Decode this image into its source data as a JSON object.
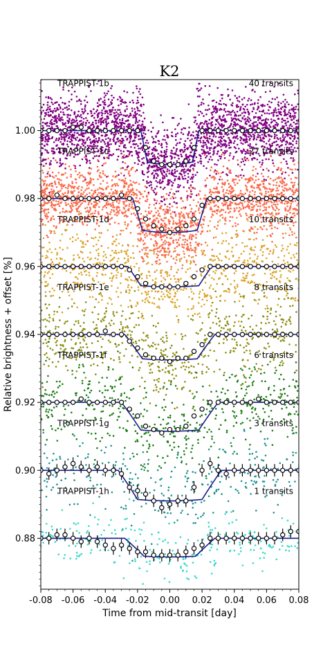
{
  "chart_data": {
    "type": "scatter",
    "title": "K2",
    "xlabel": "Time from mid-transit [day]",
    "ylabel": "Relative brightness + offset [%]",
    "xlim": [
      -0.08,
      0.08
    ],
    "ylim": [
      0.865,
      1.015
    ],
    "xticks": [
      "-0.08",
      "-0.06",
      "-0.04",
      "-0.02",
      "0.00",
      "0.02",
      "0.04",
      "0.06",
      "0.08"
    ],
    "xtick_values": [
      -0.08,
      -0.06,
      -0.04,
      -0.02,
      0.0,
      0.02,
      0.04,
      0.06,
      0.08
    ],
    "yticks": [
      "0.88",
      "0.90",
      "0.92",
      "0.94",
      "0.96",
      "0.98",
      "1.00"
    ],
    "ytick_values": [
      0.88,
      0.9,
      0.92,
      0.94,
      0.96,
      0.98,
      1.0
    ],
    "model_color": "#1a1a8c",
    "series": [
      {
        "name": "TRAPPIST-1b",
        "transits_label": "40 transits",
        "color": "#800080",
        "baseline": 1.0,
        "depth": 0.01,
        "half_duration": 0.018,
        "ingress": 0.004,
        "scatter": 0.0055,
        "n_points": 2600,
        "binned_error": false,
        "binned_x": [
          -0.08,
          -0.075,
          -0.07,
          -0.065,
          -0.06,
          -0.055,
          -0.05,
          -0.045,
          -0.04,
          -0.035,
          -0.03,
          -0.025,
          -0.02,
          -0.015,
          -0.01,
          -0.005,
          0.0,
          0.005,
          0.01,
          0.015,
          0.02,
          0.025,
          0.03,
          0.035,
          0.04,
          0.045,
          0.05,
          0.055,
          0.06,
          0.065,
          0.07,
          0.075,
          0.08
        ],
        "binned_y": [
          1.0,
          1.0,
          1.0,
          1.0,
          1.001,
          1.001,
          1.0,
          1.0,
          1.0,
          1.0,
          1.0,
          1.0,
          1.0,
          0.995,
          0.991,
          0.99,
          0.99,
          0.99,
          0.991,
          0.995,
          1.0,
          1.0,
          1.0,
          1.0,
          1.0,
          1.0,
          1.0,
          1.0,
          1.0,
          1.0,
          1.0,
          1.0,
          1.0
        ]
      },
      {
        "name": "TRAPPIST-1c",
        "transits_label": "27 transits",
        "color": "#fa6a4a",
        "baseline": 0.98,
        "depth": 0.01,
        "half_duration": 0.023,
        "ingress": 0.006,
        "scatter": 0.005,
        "n_points": 1900,
        "binned_error": false,
        "binned_x": [
          -0.08,
          -0.075,
          -0.07,
          -0.065,
          -0.06,
          -0.055,
          -0.05,
          -0.045,
          -0.04,
          -0.035,
          -0.03,
          -0.025,
          -0.02,
          -0.015,
          -0.01,
          -0.005,
          0.0,
          0.005,
          0.01,
          0.015,
          0.02,
          0.025,
          0.03,
          0.035,
          0.04,
          0.045,
          0.05,
          0.055,
          0.06,
          0.065,
          0.07,
          0.075,
          0.08
        ],
        "binned_y": [
          0.98,
          0.98,
          0.981,
          0.98,
          0.98,
          0.98,
          0.98,
          0.98,
          0.98,
          0.98,
          0.981,
          0.98,
          0.977,
          0.974,
          0.972,
          0.971,
          0.97,
          0.971,
          0.972,
          0.974,
          0.978,
          0.98,
          0.98,
          0.98,
          0.98,
          0.98,
          0.98,
          0.98,
          0.98,
          0.98,
          0.98,
          0.98,
          0.98
        ]
      },
      {
        "name": "TRAPPIST-1d",
        "transits_label": "10 transits",
        "color": "#dba52c",
        "baseline": 0.96,
        "depth": 0.006,
        "half_duration": 0.026,
        "ingress": 0.008,
        "scatter": 0.0055,
        "n_points": 800,
        "binned_error": false,
        "binned_x": [
          -0.08,
          -0.075,
          -0.07,
          -0.065,
          -0.06,
          -0.055,
          -0.05,
          -0.045,
          -0.04,
          -0.035,
          -0.03,
          -0.025,
          -0.02,
          -0.015,
          -0.01,
          -0.005,
          0.0,
          0.005,
          0.01,
          0.015,
          0.02,
          0.025,
          0.03,
          0.035,
          0.04,
          0.045,
          0.05,
          0.055,
          0.06,
          0.065,
          0.07,
          0.075,
          0.08
        ],
        "binned_y": [
          0.96,
          0.96,
          0.96,
          0.96,
          0.96,
          0.96,
          0.96,
          0.96,
          0.96,
          0.96,
          0.96,
          0.959,
          0.957,
          0.955,
          0.954,
          0.954,
          0.954,
          0.954,
          0.955,
          0.957,
          0.959,
          0.96,
          0.96,
          0.96,
          0.96,
          0.96,
          0.96,
          0.96,
          0.96,
          0.96,
          0.96,
          0.96,
          0.96
        ]
      },
      {
        "name": "TRAPPIST-1e",
        "transits_label": "8 transits",
        "color": "#8c8c10",
        "baseline": 0.94,
        "depth": 0.0075,
        "half_duration": 0.028,
        "ingress": 0.011,
        "scatter": 0.006,
        "n_points": 650,
        "binned_error": false,
        "binned_x": [
          -0.08,
          -0.075,
          -0.07,
          -0.065,
          -0.06,
          -0.055,
          -0.05,
          -0.045,
          -0.04,
          -0.035,
          -0.03,
          -0.025,
          -0.02,
          -0.015,
          -0.01,
          -0.005,
          0.0,
          0.005,
          0.01,
          0.015,
          0.02,
          0.025,
          0.03,
          0.035,
          0.04,
          0.045,
          0.05,
          0.055,
          0.06,
          0.065,
          0.07,
          0.075,
          0.08
        ],
        "binned_y": [
          0.94,
          0.94,
          0.94,
          0.94,
          0.94,
          0.94,
          0.94,
          0.94,
          0.941,
          0.94,
          0.94,
          0.938,
          0.936,
          0.934,
          0.933,
          0.933,
          0.932,
          0.933,
          0.933,
          0.935,
          0.937,
          0.94,
          0.94,
          0.94,
          0.94,
          0.94,
          0.94,
          0.94,
          0.94,
          0.94,
          0.94,
          0.94,
          0.94
        ]
      },
      {
        "name": "TRAPPIST-1f",
        "transits_label": "6 transits",
        "color": "#1a7d12",
        "baseline": 0.92,
        "depth": 0.0085,
        "half_duration": 0.03,
        "ingress": 0.012,
        "scatter": 0.006,
        "n_points": 520,
        "binned_error": false,
        "binned_x": [
          -0.08,
          -0.075,
          -0.07,
          -0.065,
          -0.06,
          -0.055,
          -0.05,
          -0.045,
          -0.04,
          -0.035,
          -0.03,
          -0.025,
          -0.02,
          -0.015,
          -0.01,
          -0.005,
          0.0,
          0.005,
          0.01,
          0.015,
          0.02,
          0.025,
          0.03,
          0.035,
          0.04,
          0.045,
          0.05,
          0.055,
          0.06,
          0.065,
          0.07,
          0.075,
          0.08
        ],
        "binned_y": [
          0.92,
          0.92,
          0.92,
          0.92,
          0.92,
          0.921,
          0.92,
          0.92,
          0.92,
          0.92,
          0.92,
          0.918,
          0.916,
          0.913,
          0.912,
          0.911,
          0.912,
          0.912,
          0.913,
          0.916,
          0.918,
          0.92,
          0.92,
          0.92,
          0.92,
          0.92,
          0.92,
          0.921,
          0.92,
          0.92,
          0.92,
          0.92,
          0.92
        ]
      },
      {
        "name": "TRAPPIST-1g",
        "transits_label": "3 transits",
        "color": "#1e9090",
        "baseline": 0.9,
        "depth": 0.009,
        "half_duration": 0.032,
        "ingress": 0.012,
        "scatter": 0.006,
        "n_points": 300,
        "binned_error": true,
        "binned_x": [
          -0.08,
          -0.075,
          -0.07,
          -0.065,
          -0.06,
          -0.055,
          -0.05,
          -0.045,
          -0.04,
          -0.035,
          -0.03,
          -0.025,
          -0.02,
          -0.015,
          -0.01,
          -0.005,
          0.0,
          0.005,
          0.01,
          0.015,
          0.02,
          0.025,
          0.03,
          0.035,
          0.04,
          0.045,
          0.05,
          0.055,
          0.06,
          0.065,
          0.07,
          0.075,
          0.08
        ],
        "binned_y": [
          0.9,
          0.899,
          0.9,
          0.901,
          0.902,
          0.901,
          0.9,
          0.901,
          0.9,
          0.9,
          0.899,
          0.895,
          0.894,
          0.893,
          0.891,
          0.889,
          0.89,
          0.891,
          0.891,
          0.895,
          0.9,
          0.902,
          0.9,
          0.899,
          0.9,
          0.9,
          0.9,
          0.9,
          0.9,
          0.9,
          0.9,
          0.9,
          0.9
        ]
      },
      {
        "name": "TRAPPIST-1h",
        "transits_label": "1 transits",
        "color": "#37d8cc",
        "baseline": 0.88,
        "depth": 0.0055,
        "half_duration": 0.028,
        "ingress": 0.012,
        "scatter": 0.004,
        "n_points": 260,
        "binned_error": true,
        "binned_x": [
          -0.08,
          -0.075,
          -0.07,
          -0.065,
          -0.06,
          -0.055,
          -0.05,
          -0.045,
          -0.04,
          -0.035,
          -0.03,
          -0.025,
          -0.02,
          -0.015,
          -0.01,
          -0.005,
          0.0,
          0.005,
          0.01,
          0.015,
          0.02,
          0.025,
          0.03,
          0.035,
          0.04,
          0.045,
          0.05,
          0.055,
          0.06,
          0.065,
          0.07,
          0.075,
          0.08
        ],
        "binned_y": [
          0.88,
          0.88,
          0.881,
          0.881,
          0.88,
          0.879,
          0.88,
          0.879,
          0.878,
          0.877,
          0.878,
          0.877,
          0.876,
          0.876,
          0.875,
          0.875,
          0.875,
          0.875,
          0.876,
          0.877,
          0.878,
          0.88,
          0.88,
          0.88,
          0.88,
          0.88,
          0.88,
          0.88,
          0.88,
          0.88,
          0.881,
          0.882,
          0.882
        ]
      }
    ]
  }
}
